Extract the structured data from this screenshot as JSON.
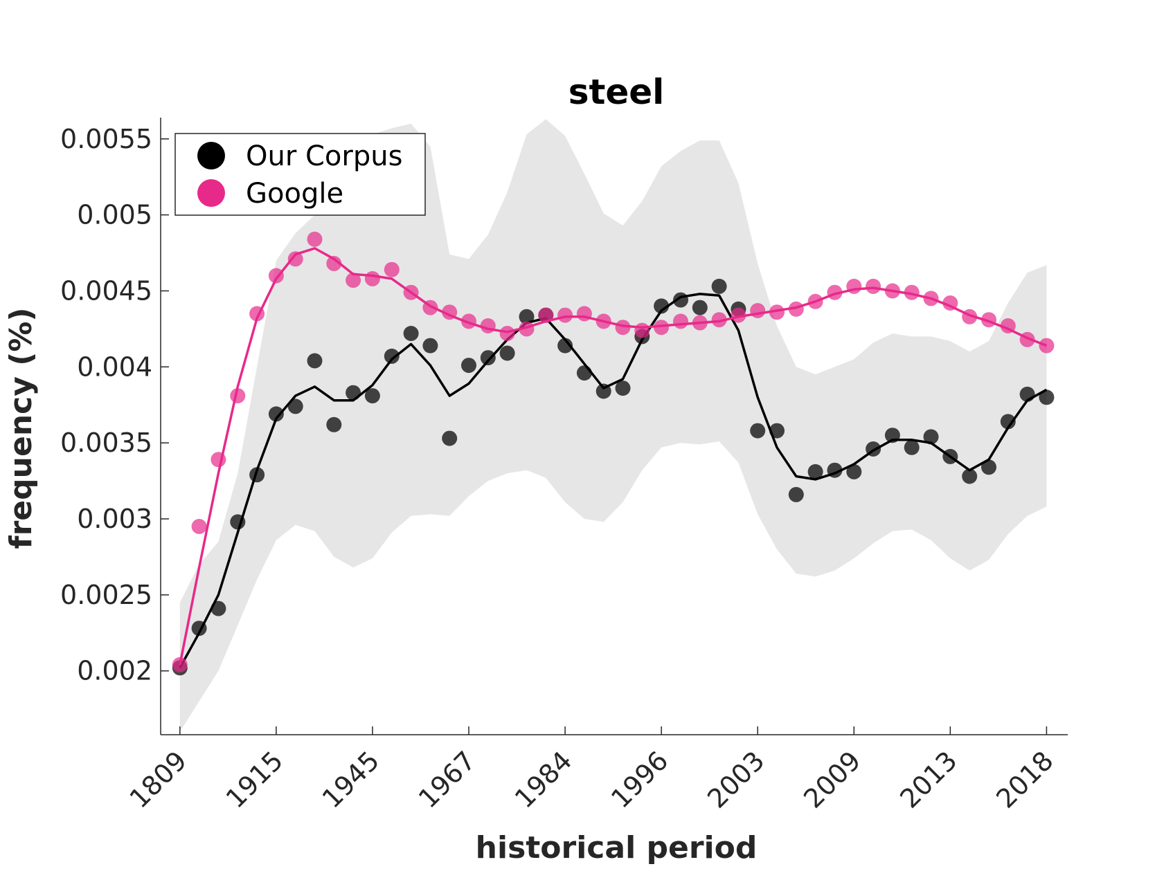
{
  "chart_data": {
    "type": "line",
    "title": "steel",
    "xlabel": "historical period",
    "ylabel": "frequency (%)",
    "x_tick_labels": [
      "1809",
      "1915",
      "1945",
      "1967",
      "1984",
      "1996",
      "2003",
      "2009",
      "2013",
      "2018"
    ],
    "x_tick_indices": [
      0,
      5,
      10,
      15,
      20,
      25,
      30,
      35,
      40,
      45
    ],
    "y_tick_labels": [
      "0.002",
      "0.0025",
      "0.003",
      "0.0035",
      "0.004",
      "0.0045",
      "0.005",
      "0.0055"
    ],
    "y_ticks": [
      0.002,
      0.0025,
      0.003,
      0.0035,
      0.004,
      0.0045,
      0.005,
      0.0055
    ],
    "ylim": [
      0.00158,
      0.00564
    ],
    "xlim": [
      -1,
      46.1
    ],
    "legend_position": "top-left",
    "series": [
      {
        "name": "Our Corpus",
        "color": "#000000",
        "marker": "dot",
        "values": [
          0.00202,
          0.00228,
          0.00241,
          0.00298,
          0.00329,
          0.00369,
          0.00374,
          0.00404,
          0.00362,
          0.00383,
          0.00381,
          0.00407,
          0.00422,
          0.00414,
          0.00353,
          0.00401,
          0.00406,
          0.00409,
          0.00433,
          0.00434,
          0.00414,
          0.00396,
          0.00384,
          0.00386,
          0.0042,
          0.0044,
          0.00444,
          0.00439,
          0.00453,
          0.00438,
          0.00358,
          0.00358,
          0.00316,
          0.00331,
          0.00332,
          0.00331,
          0.00346,
          0.00355,
          0.00347,
          0.00354,
          0.00341,
          0.00328,
          0.00334,
          0.00364,
          0.00382,
          0.0038
        ],
        "smoothed": [
          0.00202,
          0.00225,
          0.0025,
          0.00291,
          0.00332,
          0.00366,
          0.00381,
          0.00387,
          0.00378,
          0.00378,
          0.00388,
          0.00405,
          0.00415,
          0.00401,
          0.00381,
          0.00389,
          0.00404,
          0.00418,
          0.00429,
          0.00432,
          0.00418,
          0.00402,
          0.00386,
          0.00392,
          0.00418,
          0.00437,
          0.00446,
          0.00448,
          0.00447,
          0.00424,
          0.0038,
          0.00347,
          0.00328,
          0.00326,
          0.0033,
          0.00336,
          0.00345,
          0.00352,
          0.00352,
          0.0035,
          0.00341,
          0.00332,
          0.00339,
          0.0036,
          0.00378,
          0.00385
        ]
      },
      {
        "name": "Google",
        "color": "#e7298a",
        "marker": "dot",
        "values": [
          0.00204,
          0.00295,
          0.00339,
          0.00381,
          0.00435,
          0.0046,
          0.00471,
          0.00484,
          0.00468,
          0.00457,
          0.00458,
          0.00464,
          0.00449,
          0.00439,
          0.00436,
          0.0043,
          0.00427,
          0.00422,
          0.00425,
          0.00434,
          0.00434,
          0.00435,
          0.0043,
          0.00426,
          0.00424,
          0.00426,
          0.0043,
          0.00429,
          0.00431,
          0.00434,
          0.00437,
          0.00436,
          0.00438,
          0.00443,
          0.00449,
          0.00453,
          0.00453,
          0.0045,
          0.00449,
          0.00445,
          0.00442,
          0.00433,
          0.00431,
          0.00427,
          0.00418,
          0.00414
        ],
        "smoothed": [
          0.00204,
          0.00268,
          0.0033,
          0.00387,
          0.00432,
          0.00458,
          0.00474,
          0.00478,
          0.00471,
          0.00461,
          0.0046,
          0.00458,
          0.00449,
          0.0044,
          0.00434,
          0.00429,
          0.00425,
          0.00423,
          0.00426,
          0.0043,
          0.00433,
          0.00433,
          0.0043,
          0.00427,
          0.00426,
          0.00427,
          0.00428,
          0.00429,
          0.0043,
          0.00433,
          0.00435,
          0.00437,
          0.00439,
          0.00443,
          0.00448,
          0.00451,
          0.00452,
          0.0045,
          0.00448,
          0.00445,
          0.0044,
          0.00434,
          0.0043,
          0.00425,
          0.00419,
          0.00414
        ]
      }
    ],
    "band": {
      "color": "#e6e6e6",
      "upper": [
        0.00245,
        0.0027,
        0.00285,
        0.0033,
        0.004,
        0.0047,
        0.00488,
        0.005,
        0.00535,
        0.0055,
        0.00553,
        0.00557,
        0.0056,
        0.00545,
        0.00474,
        0.00471,
        0.00487,
        0.00515,
        0.00553,
        0.00563,
        0.00552,
        0.00527,
        0.00501,
        0.00493,
        0.00509,
        0.00532,
        0.00542,
        0.00549,
        0.00549,
        0.00521,
        0.00468,
        0.00427,
        0.004,
        0.00395,
        0.004,
        0.00405,
        0.00416,
        0.00422,
        0.0042,
        0.0042,
        0.00417,
        0.0041,
        0.00417,
        0.00442,
        0.00462,
        0.00467
      ],
      "lower": [
        0.0016,
        0.0018,
        0.002,
        0.0023,
        0.0026,
        0.00286,
        0.00296,
        0.00292,
        0.00275,
        0.00268,
        0.00274,
        0.00291,
        0.00302,
        0.00303,
        0.00302,
        0.00315,
        0.00325,
        0.0033,
        0.00332,
        0.00327,
        0.00311,
        0.003,
        0.00298,
        0.00311,
        0.00332,
        0.00347,
        0.0035,
        0.00349,
        0.00351,
        0.00337,
        0.00303,
        0.0028,
        0.00264,
        0.00262,
        0.00266,
        0.00274,
        0.00284,
        0.00292,
        0.00293,
        0.00286,
        0.00274,
        0.00266,
        0.00273,
        0.0029,
        0.00302,
        0.00308
      ]
    }
  }
}
